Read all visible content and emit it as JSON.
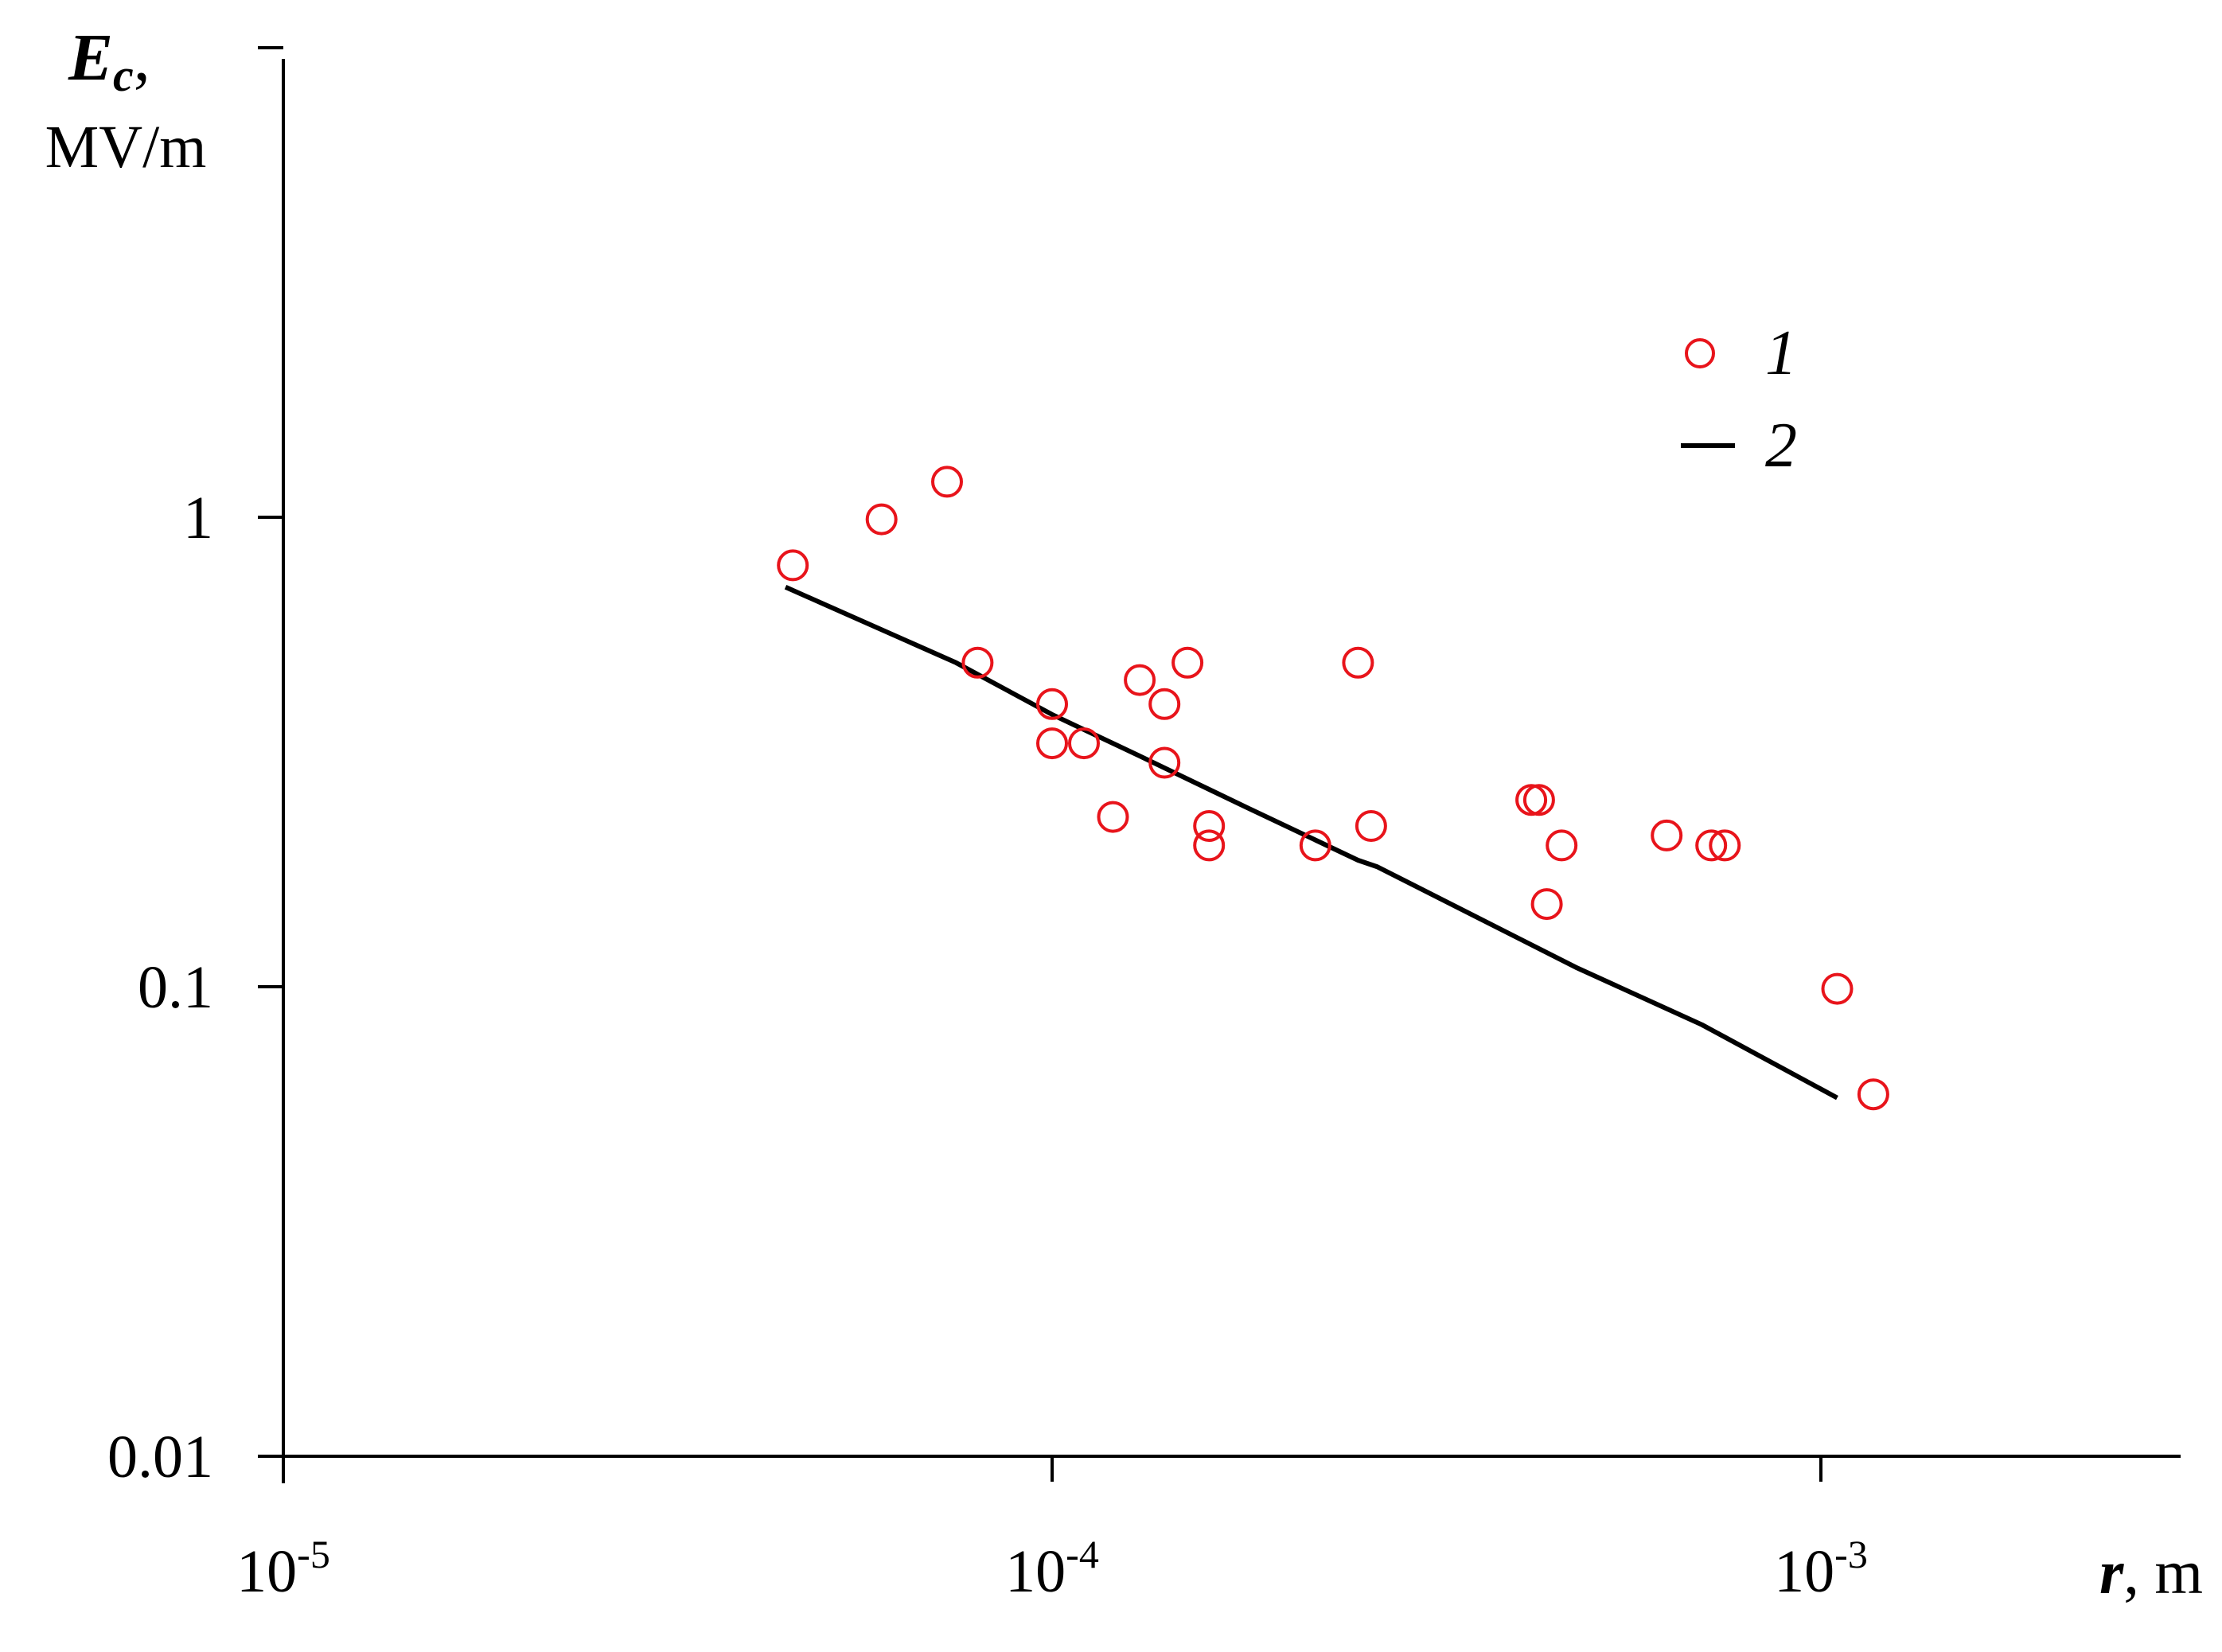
{
  "chart_data": {
    "type": "scatter",
    "title": "",
    "xlabel": {
      "symbol": "r",
      "unit": ", m"
    },
    "ylabel": {
      "symbol": "E",
      "subscript": "c",
      "suffix": ",",
      "unit": "MV/m"
    },
    "xscale": "log",
    "yscale": "log",
    "xlim": [
      1e-05,
      0.003
    ],
    "ylim": [
      0.01,
      10
    ],
    "grid": false,
    "x_ticks": [
      {
        "value": 1e-05,
        "base": "10",
        "exp": "-5"
      },
      {
        "value": 0.0001,
        "base": "10",
        "exp": "-4"
      },
      {
        "value": 0.001,
        "base": "10",
        "exp": "-3"
      }
    ],
    "y_ticks": [
      {
        "value": 0.01,
        "label": "0.01"
      },
      {
        "value": 0.1,
        "label": "0.1"
      },
      {
        "value": 1,
        "label": "1"
      },
      {
        "value": 10,
        "label": ""
      }
    ],
    "legend": {
      "position": "top-right"
    },
    "series": [
      {
        "name": "1",
        "kind": "scatter",
        "marker": "open-circle",
        "color": "#e8141b",
        "points": [
          [
            4.6e-05,
            0.79
          ],
          [
            6e-05,
            0.99
          ],
          [
            7.3e-05,
            1.19
          ],
          [
            8e-05,
            0.49
          ],
          [
            0.0001,
            0.4
          ],
          [
            0.0001,
            0.33
          ],
          [
            0.00011,
            0.33
          ],
          [
            0.00012,
            0.23
          ],
          [
            0.00013,
            0.45
          ],
          [
            0.00014,
            0.4
          ],
          [
            0.00014,
            0.3
          ],
          [
            0.00015,
            0.49
          ],
          [
            0.00016,
            0.22
          ],
          [
            0.00016,
            0.2
          ],
          [
            0.00022,
            0.2
          ],
          [
            0.00025,
            0.49
          ],
          [
            0.00026,
            0.22
          ],
          [
            0.00042,
            0.25
          ],
          [
            0.00043,
            0.25
          ],
          [
            0.00044,
            0.15
          ],
          [
            0.00046,
            0.2
          ],
          [
            0.00063,
            0.21
          ],
          [
            0.00072,
            0.2
          ],
          [
            0.00075,
            0.2
          ],
          [
            0.00105,
            0.099
          ],
          [
            0.00117,
            0.059
          ]
        ]
      },
      {
        "name": "2",
        "kind": "line",
        "color": "#000000",
        "points": [
          [
            4.5e-05,
            0.71
          ],
          [
            7.5e-05,
            0.49
          ],
          [
            0.0001,
            0.38
          ],
          [
            0.00013,
            0.31
          ],
          [
            0.00018,
            0.24
          ],
          [
            0.00025,
            0.186
          ],
          [
            0.000265,
            0.18
          ],
          [
            0.00048,
            0.11
          ],
          [
            0.0007,
            0.083
          ],
          [
            0.00105,
            0.058
          ]
        ]
      }
    ]
  }
}
